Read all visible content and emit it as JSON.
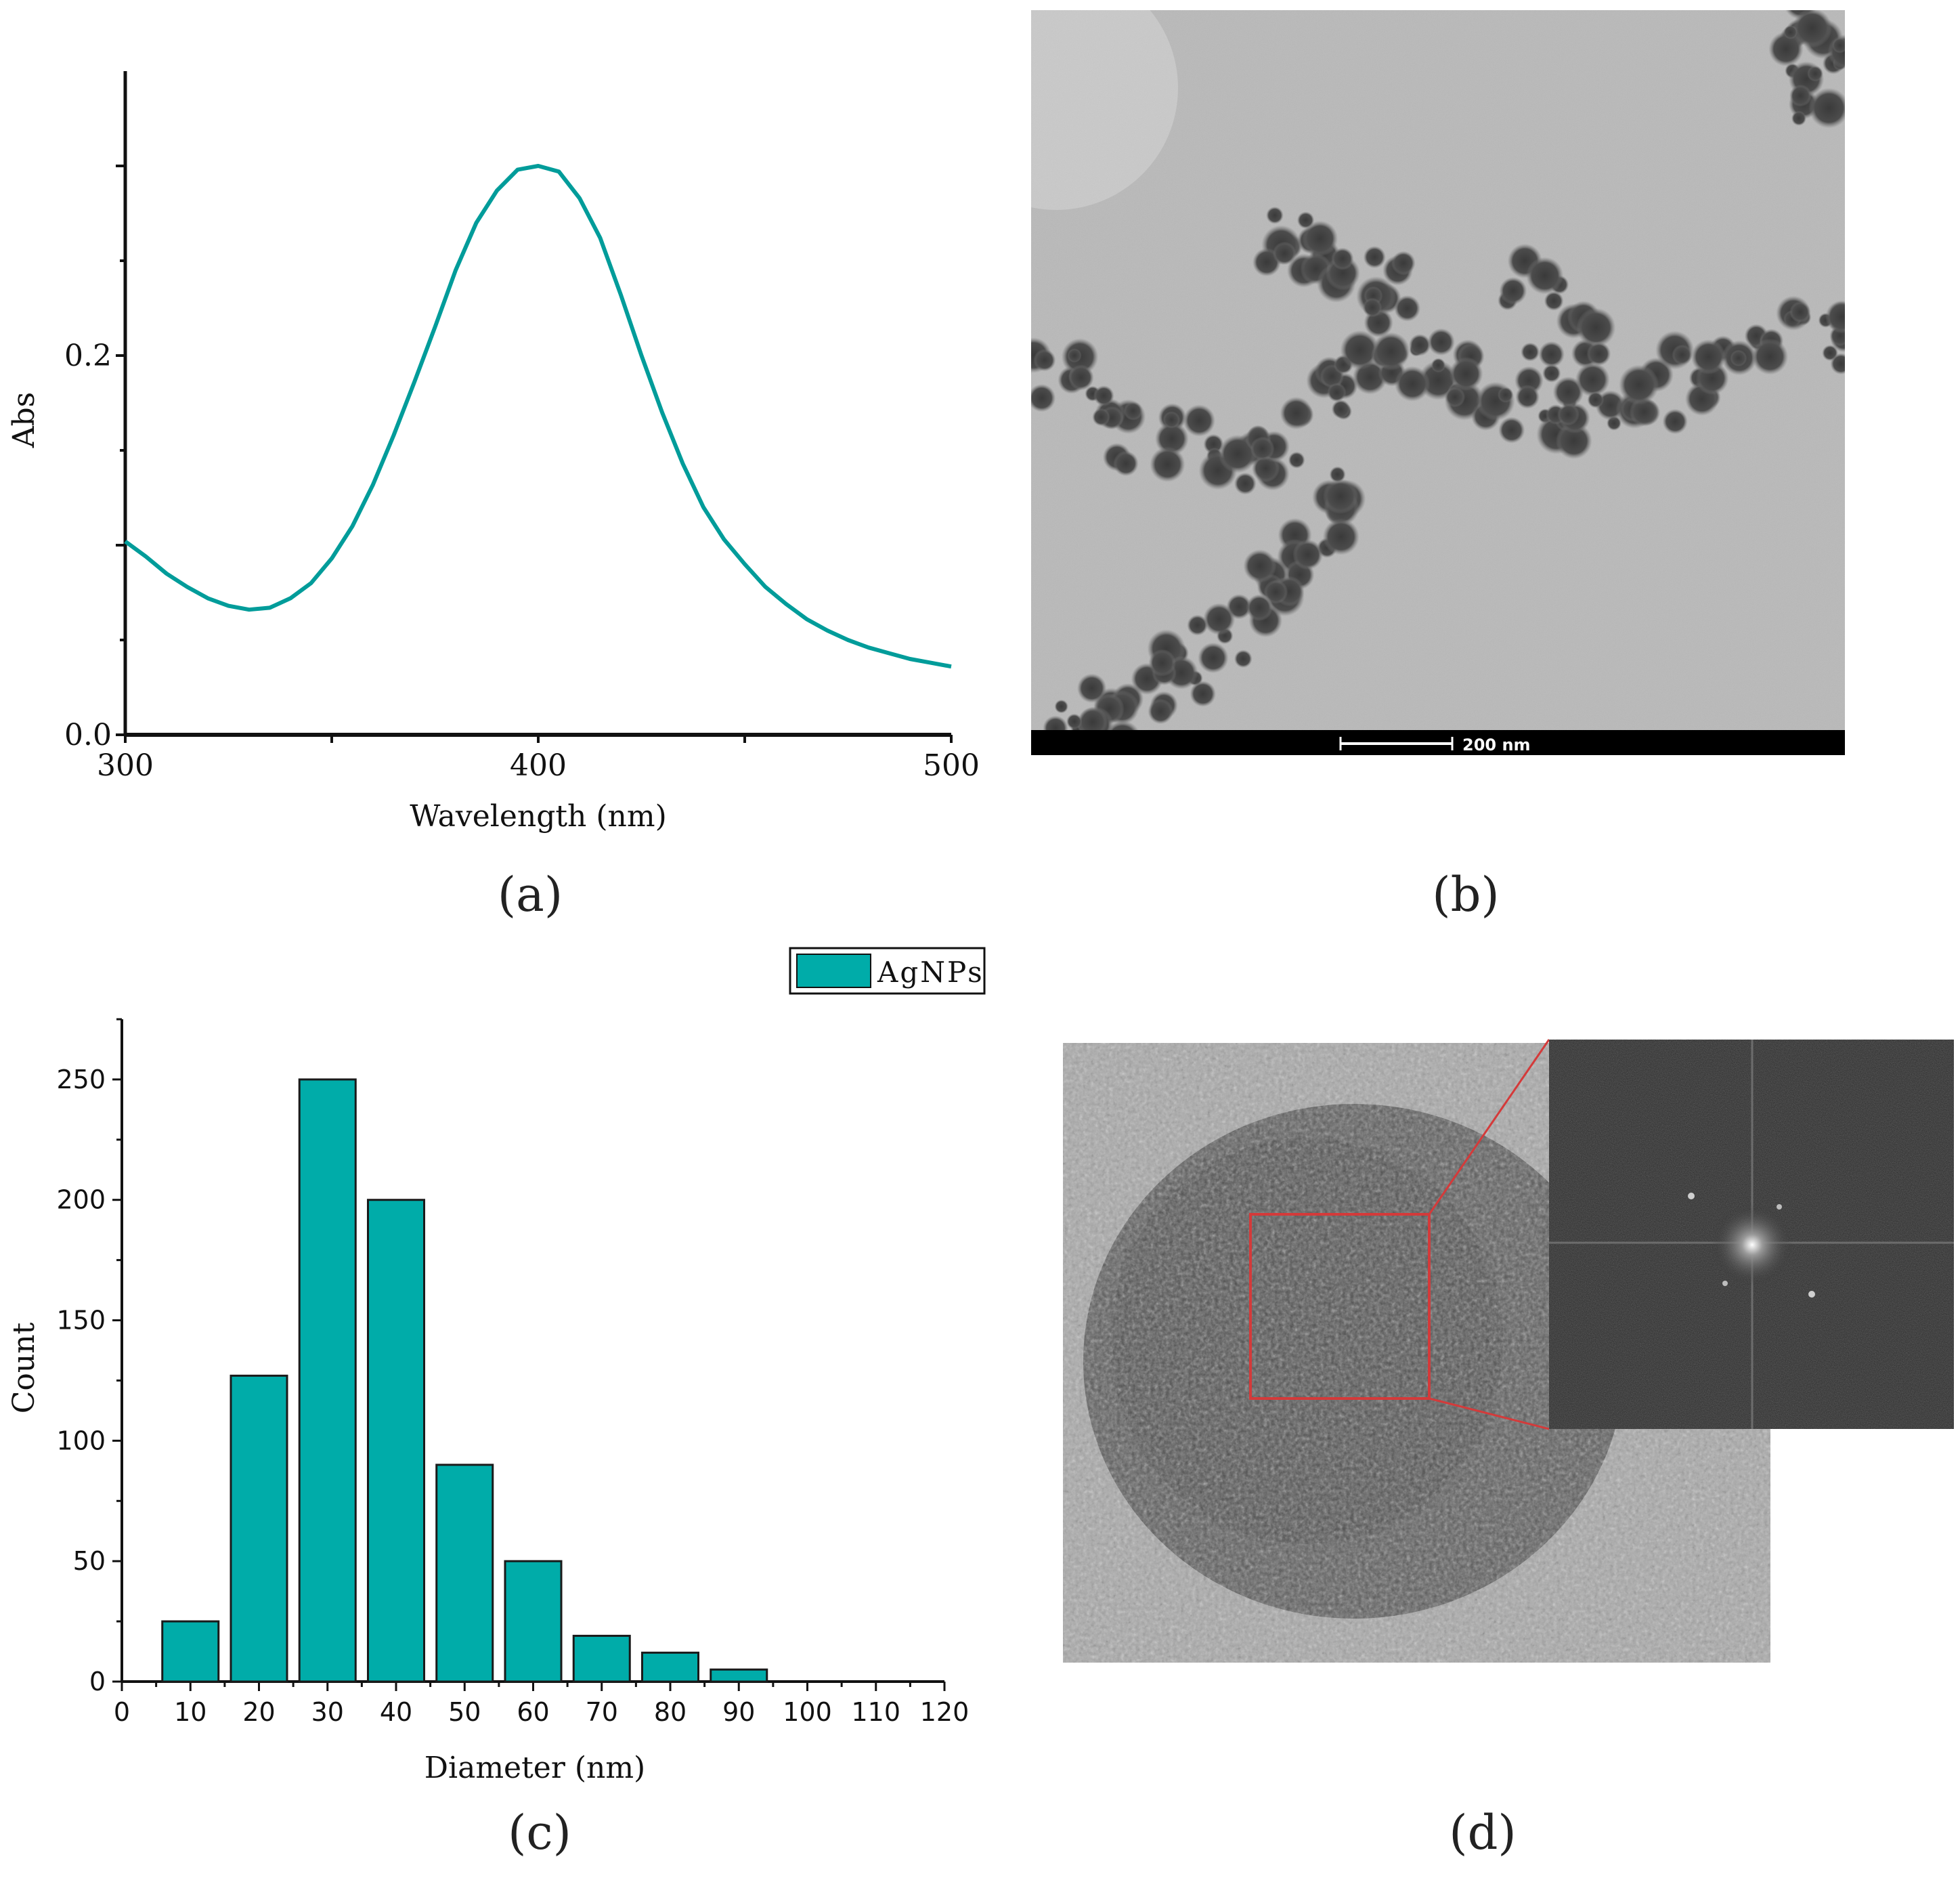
{
  "colors": {
    "series": "#009c9a",
    "bar_fill": "#00aca9",
    "bar_stroke": "#1a1a1a",
    "axis": "#111111",
    "inset_box": "#d43a3a"
  },
  "chart_data": [
    {
      "id": "a",
      "type": "line",
      "xlabel": "Wavelength (nm)",
      "ylabel": "Abs",
      "xlim": [
        300,
        500
      ],
      "ylim": [
        0.0,
        0.35
      ],
      "x_ticks": [
        300,
        400,
        500
      ],
      "y_ticks": [
        0.0,
        0.2
      ],
      "x_tick_labels": [
        "300",
        "400",
        "500"
      ],
      "y_tick_labels": [
        "0.0",
        "0.2"
      ],
      "grid": false,
      "series": [
        {
          "x": [
            300,
            305,
            310,
            315,
            320,
            325,
            330,
            335,
            340,
            345,
            350,
            355,
            360,
            365,
            370,
            375,
            380,
            385,
            390,
            395,
            400,
            405,
            410,
            415,
            420,
            425,
            430,
            435,
            440,
            445,
            450,
            455,
            460,
            465,
            470,
            475,
            480,
            485,
            490,
            495,
            500
          ],
          "y": [
            0.102,
            0.094,
            0.085,
            0.078,
            0.072,
            0.068,
            0.066,
            0.067,
            0.072,
            0.08,
            0.093,
            0.11,
            0.132,
            0.158,
            0.186,
            0.215,
            0.245,
            0.27,
            0.287,
            0.298,
            0.3,
            0.297,
            0.283,
            0.262,
            0.232,
            0.2,
            0.17,
            0.143,
            0.12,
            0.103,
            0.09,
            0.078,
            0.069,
            0.061,
            0.055,
            0.05,
            0.046,
            0.043,
            0.04,
            0.038,
            0.036
          ]
        }
      ]
    },
    {
      "id": "c",
      "type": "bar",
      "xlabel": "Diameter (nm)",
      "ylabel": "Count",
      "xlim": [
        0,
        120
      ],
      "ylim": [
        0,
        275
      ],
      "x_ticks": [
        "0",
        "10",
        "20",
        "30",
        "40",
        "50",
        "60",
        "70",
        "80",
        "90",
        "100",
        "110",
        "120"
      ],
      "y_ticks": [
        "0",
        "50",
        "100",
        "150",
        "200",
        "250"
      ],
      "legend": "top-right",
      "grid": false,
      "series": [
        {
          "name": "AgNPs",
          "x": [
            10,
            20,
            30,
            40,
            50,
            60,
            70,
            80,
            90
          ],
          "values": [
            25,
            127,
            250,
            200,
            90,
            50,
            19,
            12,
            5
          ]
        }
      ]
    }
  ],
  "figure_b": {
    "scale_bar": "200 nm"
  },
  "captions": {
    "a": "(a)",
    "b": "(b)",
    "c": "(c)",
    "d": "(d)"
  }
}
